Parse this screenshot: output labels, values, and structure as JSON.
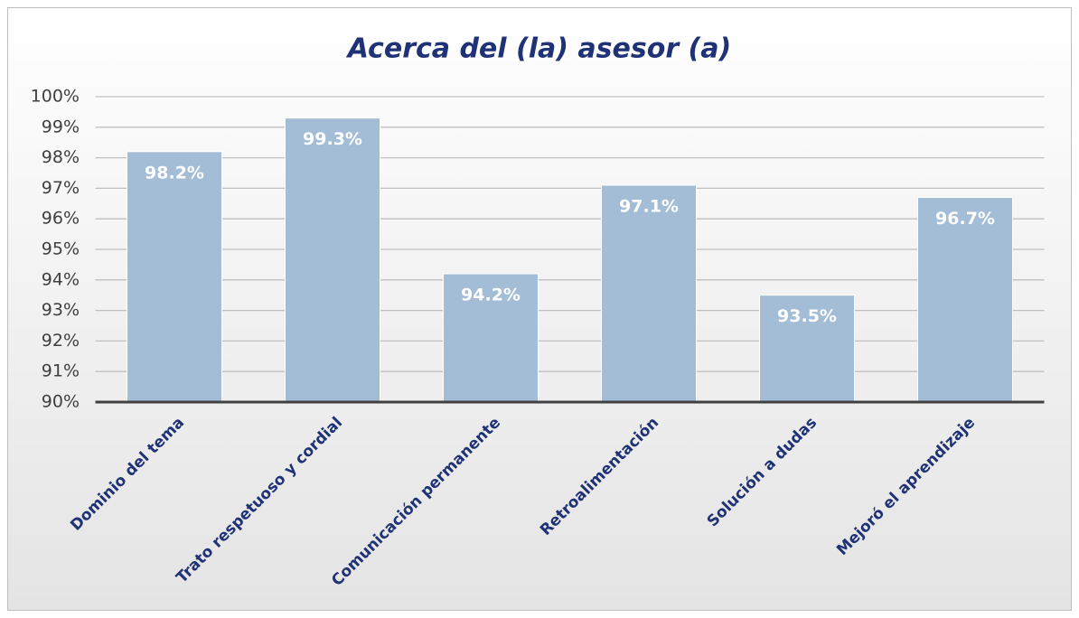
{
  "chart_data": {
    "type": "bar",
    "title": "Acerca del (la) asesor (a)",
    "categories": [
      "Dominio del tema",
      "Trato respetuoso y cordial",
      "Comunicación permanente",
      "Retroalimentación",
      "Solución a dudas",
      "Mejoró el aprendizaje"
    ],
    "values": [
      98.2,
      99.3,
      94.2,
      97.1,
      93.5,
      96.7
    ],
    "value_labels": [
      "98.2%",
      "99.3%",
      "94.2%",
      "97.1%",
      "93.5%",
      "96.7%"
    ],
    "color": "#a3bdd7",
    "ylim": [
      90,
      100
    ],
    "yticks": [
      {
        "value": 90,
        "label": "90%"
      },
      {
        "value": 91,
        "label": "91%"
      },
      {
        "value": 92,
        "label": "92%"
      },
      {
        "value": 93,
        "label": "93%"
      },
      {
        "value": 94,
        "label": "94%"
      },
      {
        "value": 95,
        "label": "95%"
      },
      {
        "value": 96,
        "label": "96%"
      },
      {
        "value": 97,
        "label": "97%"
      },
      {
        "value": 98,
        "label": "98%"
      },
      {
        "value": 99,
        "label": "99%"
      },
      {
        "value": 100,
        "label": "100%"
      }
    ],
    "grid": true
  }
}
